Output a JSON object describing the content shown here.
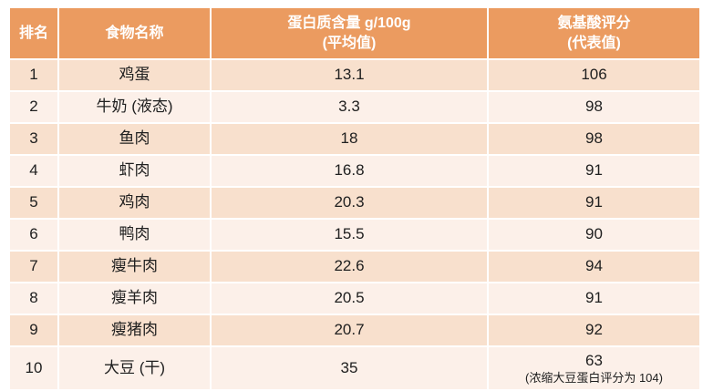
{
  "colors": {
    "header_bg": "#EB9B60",
    "header_text": "#FFFFFF",
    "row_odd_bg": "#F8E0CD",
    "row_even_bg": "#FCF0E9",
    "body_text": "#202020"
  },
  "table": {
    "columns": [
      {
        "label": "排名"
      },
      {
        "label": "食物名称"
      },
      {
        "label": "蛋白质含量 g/100g",
        "sublabel": "(平均值)"
      },
      {
        "label": "氨基酸评分",
        "sublabel": "(代表值)"
      }
    ],
    "rows": [
      {
        "rank": "1",
        "food": "鸡蛋",
        "protein": "13.1",
        "score": "106",
        "note": ""
      },
      {
        "rank": "2",
        "food": "牛奶 (液态)",
        "protein": "3.3",
        "score": "98",
        "note": ""
      },
      {
        "rank": "3",
        "food": "鱼肉",
        "protein": "18",
        "score": "98",
        "note": ""
      },
      {
        "rank": "4",
        "food": "虾肉",
        "protein": "16.8",
        "score": "91",
        "note": ""
      },
      {
        "rank": "5",
        "food": "鸡肉",
        "protein": "20.3",
        "score": "91",
        "note": ""
      },
      {
        "rank": "6",
        "food": "鸭肉",
        "protein": "15.5",
        "score": "90",
        "note": ""
      },
      {
        "rank": "7",
        "food": "瘦牛肉",
        "protein": "22.6",
        "score": "94",
        "note": ""
      },
      {
        "rank": "8",
        "food": "瘦羊肉",
        "protein": "20.5",
        "score": "91",
        "note": ""
      },
      {
        "rank": "9",
        "food": "瘦猪肉",
        "protein": "20.7",
        "score": "92",
        "note": ""
      },
      {
        "rank": "10",
        "food": "大豆 (干)",
        "protein": "35",
        "score": "63",
        "note": "(浓缩大豆蛋白评分为 104)"
      }
    ]
  },
  "chart_data": {
    "type": "table",
    "title": "",
    "columns": [
      "排名",
      "食物名称",
      "蛋白质含量 g/100g (平均值)",
      "氨基酸评分 (代表值)"
    ],
    "rows": [
      [
        "1",
        "鸡蛋",
        13.1,
        106
      ],
      [
        "2",
        "牛奶 (液态)",
        3.3,
        98
      ],
      [
        "3",
        "鱼肉",
        18,
        98
      ],
      [
        "4",
        "虾肉",
        16.8,
        91
      ],
      [
        "5",
        "鸡肉",
        20.3,
        91
      ],
      [
        "6",
        "鸭肉",
        15.5,
        90
      ],
      [
        "7",
        "瘦牛肉",
        22.6,
        94
      ],
      [
        "8",
        "瘦羊肉",
        20.5,
        91
      ],
      [
        "9",
        "瘦猪肉",
        20.7,
        92
      ],
      [
        "10",
        "大豆 (干)",
        35,
        "63 (浓缩大豆蛋白评分为 104)"
      ]
    ],
    "layout_hints": {
      "header_fill": "#EB9B60",
      "banding": [
        "#F8E0CD",
        "#FCF0E9"
      ],
      "alignment": "center"
    }
  }
}
